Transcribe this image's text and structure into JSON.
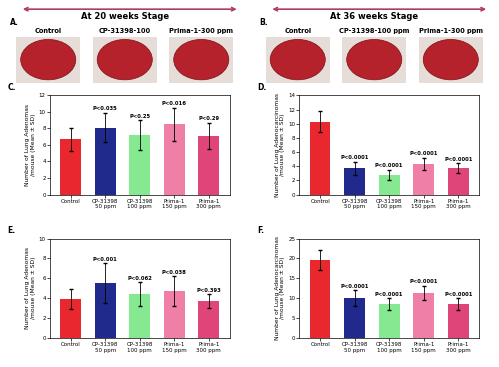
{
  "header": [
    {
      "letter": "A.",
      "title": "At 20 weeks Stage"
    },
    {
      "letter": "B.",
      "title": "At 36 weeks Stage"
    }
  ],
  "photos": [
    {
      "labels": [
        "Control",
        "CP-31398-100",
        "Prima-1-300 ppm"
      ]
    },
    {
      "labels": [
        "Control",
        "CP-31398-100 ppm",
        "Prima-1-300 ppm"
      ]
    }
  ],
  "chart_data": [
    {
      "type": "bar",
      "title": "C.",
      "y_label": "Number of Lung Adenomas\n/mouse (Mean ± SD)",
      "categories": [
        "Control",
        "CP-31398\n50 ppm",
        "CP-31398\n100 ppm",
        "Prima-1\n150 ppm",
        "Prima-1\n300 ppm"
      ],
      "values": [
        6.7,
        8.1,
        7.2,
        8.5,
        7.1
      ],
      "errors": [
        1.4,
        1.8,
        1.8,
        2.0,
        1.6
      ],
      "annotations": [
        null,
        "P<0.035",
        "P<0.25",
        "P<0.016",
        "P<0.29"
      ],
      "colors": [
        "#e8272e",
        "#1f2a8c",
        "#86e890",
        "#f07fa8",
        "#e0457a"
      ],
      "ylim": [
        0,
        12
      ],
      "yticks": [
        0,
        2,
        4,
        6,
        8,
        10,
        12
      ]
    },
    {
      "type": "bar",
      "title": "D.",
      "y_label": "Number of Lung Adenocarcinomas\n/mouse (Mean ± SD)",
      "categories": [
        "Control",
        "CP-31398\n50 ppm",
        "CP-31398\n100 ppm",
        "Prima-1\n150 ppm",
        "Prima-1\n300 ppm"
      ],
      "values": [
        10.3,
        3.7,
        2.8,
        4.3,
        3.7
      ],
      "errors": [
        1.5,
        0.9,
        0.7,
        0.9,
        0.7
      ],
      "annotations": [
        null,
        "P<0.0001",
        "P<0.0001",
        "P<0.0001",
        "P<0.0001"
      ],
      "colors": [
        "#e8272e",
        "#1f2a8c",
        "#86e890",
        "#f07fa8",
        "#e0457a"
      ],
      "ylim": [
        0,
        14
      ],
      "yticks": [
        0,
        2,
        4,
        6,
        8,
        10,
        12,
        14
      ]
    },
    {
      "type": "bar",
      "title": "E.",
      "y_label": "Number of Lung Adenomas\n/mouse (Mean ± SD)",
      "categories": [
        "Control",
        "CP-31398\n50 ppm",
        "CP-31398\n100 ppm",
        "Prima-1\n150 ppm",
        "Prima-1\n300 ppm"
      ],
      "values": [
        3.9,
        5.5,
        4.4,
        4.7,
        3.7
      ],
      "errors": [
        1.0,
        2.0,
        1.2,
        1.5,
        0.7
      ],
      "annotations": [
        null,
        "P<0.001",
        "P<0.062",
        "P<0.038",
        "P<0.393"
      ],
      "colors": [
        "#e8272e",
        "#1f2a8c",
        "#86e890",
        "#f07fa8",
        "#e0457a"
      ],
      "ylim": [
        0,
        10
      ],
      "yticks": [
        0,
        2,
        4,
        6,
        8,
        10
      ]
    },
    {
      "type": "bar",
      "title": "F.",
      "y_label": "Number of Lung Adenocarcinomas\n/mouse (Mean ± SD)",
      "categories": [
        "Control",
        "CP-31398\n50 ppm",
        "CP-31398\n100 ppm",
        "Prima-1\n150 ppm",
        "Prima-1\n300 ppm"
      ],
      "values": [
        19.6,
        10.0,
        8.5,
        11.3,
        8.5
      ],
      "errors": [
        2.5,
        2.0,
        1.5,
        1.8,
        1.5
      ],
      "annotations": [
        null,
        "P<0.0001",
        "P<0.0001",
        "P<0.0001",
        "P<0.0001"
      ],
      "colors": [
        "#e8272e",
        "#1f2a8c",
        "#86e890",
        "#f07fa8",
        "#e0457a"
      ],
      "ylim": [
        0,
        25
      ],
      "yticks": [
        0,
        5,
        10,
        15,
        20,
        25
      ]
    }
  ]
}
